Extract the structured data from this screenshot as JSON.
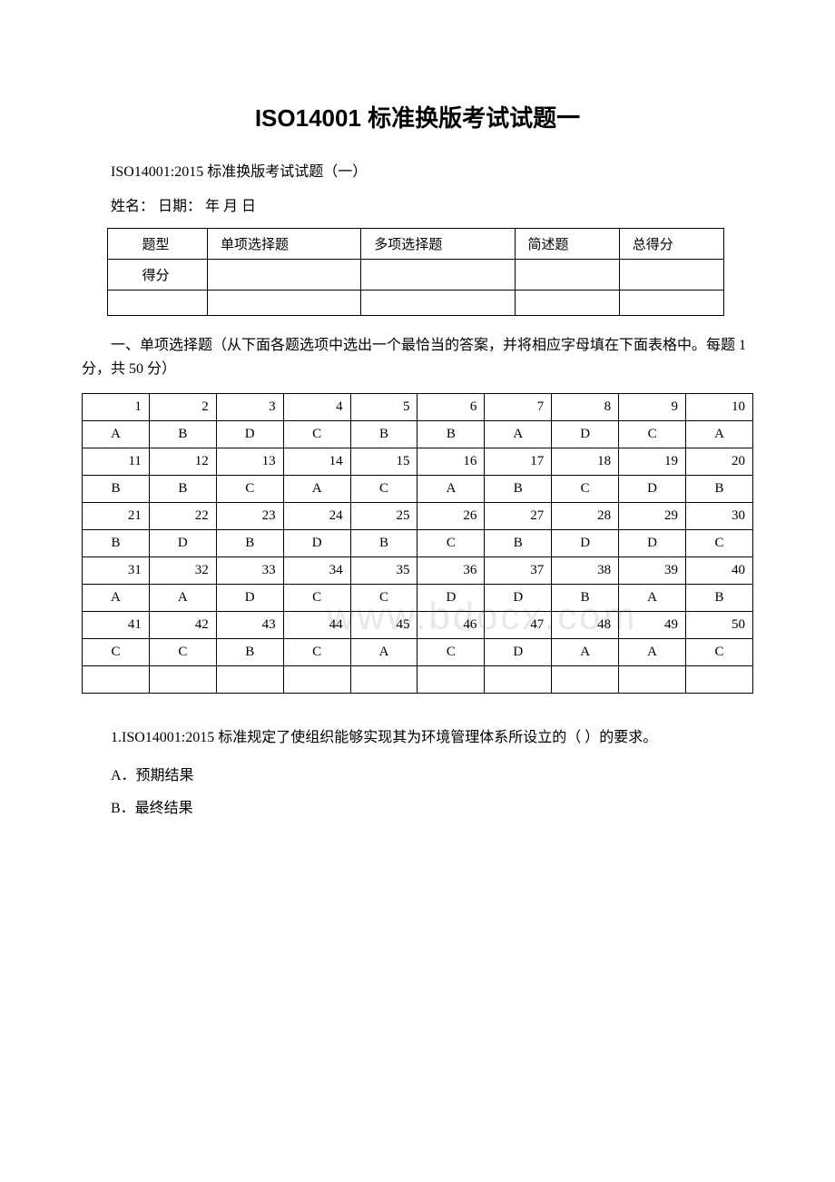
{
  "title": "ISO14001 标准换版考试试题一",
  "subtitle": "ISO14001:2015 标准换版考试试题（一）",
  "name_date": "姓名：  日期： 年 月  日",
  "watermark": "www.bdocx.com",
  "score_table": {
    "headers": [
      "题型",
      "单项选择题",
      "多项选择题",
      "简述题",
      "总得分"
    ],
    "row_label": "得分"
  },
  "section1_heading": "一、单项选择题（从下面各题选项中选出一个最恰当的答案，并将相应字母填在下面表格中。每题 1 分，共 50 分）",
  "answer_table": {
    "numbers": [
      [
        "1",
        "2",
        "3",
        "4",
        "5",
        "6",
        "7",
        "8",
        "9",
        "10"
      ],
      [
        "11",
        "12",
        "13",
        "14",
        "15",
        "16",
        "17",
        "18",
        "19",
        "20"
      ],
      [
        "21",
        "22",
        "23",
        "24",
        "25",
        "26",
        "27",
        "28",
        "29",
        "30"
      ],
      [
        "31",
        "32",
        "33",
        "34",
        "35",
        "36",
        "37",
        "38",
        "39",
        "40"
      ],
      [
        "41",
        "42",
        "43",
        "44",
        "45",
        "46",
        "47",
        "48",
        "49",
        "50"
      ]
    ],
    "answers": [
      [
        "A",
        "B",
        "D",
        "C",
        "B",
        "B",
        "A",
        "D",
        "C",
        "A"
      ],
      [
        "B",
        "B",
        "C",
        "A",
        "C",
        "A",
        "B",
        "C",
        "D",
        "B"
      ],
      [
        "B",
        "D",
        "B",
        "D",
        "B",
        "C",
        "B",
        "D",
        "D",
        "C"
      ],
      [
        "A",
        "A",
        "D",
        "C",
        "C",
        "D",
        "D",
        "B",
        "A",
        "B"
      ],
      [
        "C",
        "C",
        "B",
        "C",
        "A",
        "C",
        "D",
        "A",
        "A",
        "C"
      ]
    ]
  },
  "question1": "1.ISO14001:2015 标准规定了使组织能够实现其为环境管理体系所设立的（ ）的要求。",
  "options": {
    "a": "A．预期结果",
    "b": "B．最终结果"
  }
}
